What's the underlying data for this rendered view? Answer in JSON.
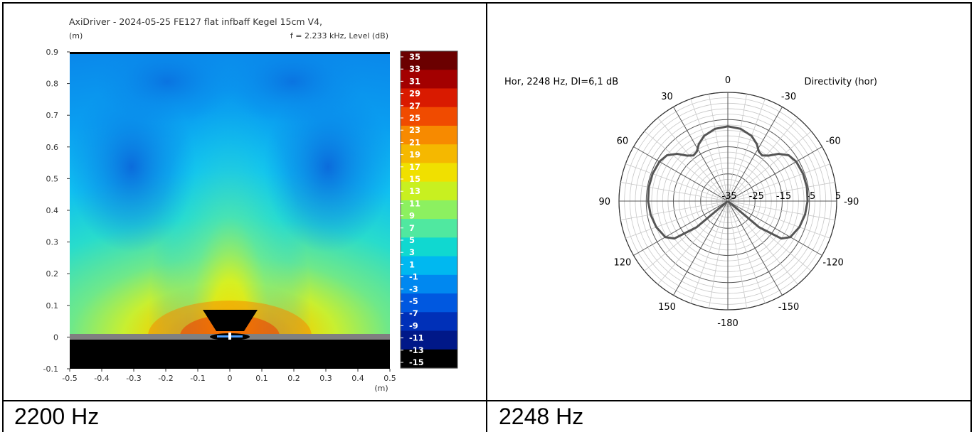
{
  "captions": {
    "left": "2200 Hz",
    "right": "2248 Hz"
  },
  "chart_data": [
    {
      "type": "heatmap",
      "title": "AxiDriver - 2024-05-25 FE127 flat infbaff Kegel 15cm V4,",
      "subtitle": "f = 2.233 kHz, Level  (dB)",
      "ylabel": "(m)",
      "xlabel": "(m)",
      "xlim": [
        -0.5,
        0.5
      ],
      "ylim": [
        -0.1,
        0.9
      ],
      "xticks": [
        "-0.5",
        "-0.4",
        "-0.3",
        "-0.2",
        "-0.1",
        "0",
        "0.1",
        "0.2",
        "0.3",
        "0.4",
        "0.5"
      ],
      "yticks": [
        "-0.1",
        "0",
        "0.1",
        "0.2",
        "0.3",
        "0.4",
        "0.5",
        "0.6",
        "0.7",
        "0.8",
        "0.9"
      ],
      "colorbar": {
        "labels": [
          "35",
          "33",
          "31",
          "29",
          "27",
          "25",
          "23",
          "21",
          "19",
          "17",
          "15",
          "13",
          "11",
          "9",
          "7",
          "5",
          "3",
          "1",
          "-1",
          "-3",
          "-5",
          "-7",
          "-9",
          "-11",
          "-13",
          "-15"
        ],
        "min": -15,
        "max": 35,
        "colors": [
          "#6b0000",
          "#a30000",
          "#d91a00",
          "#f04b00",
          "#f78a00",
          "#f5b800",
          "#f0e000",
          "#c8f020",
          "#8cf060",
          "#50e8a0",
          "#10d8d0",
          "#00b8f0",
          "#0088f0",
          "#0058e0",
          "#0030b8",
          "#001888",
          "#000000"
        ]
      },
      "baffle_y": 0,
      "legend": "right"
    },
    {
      "type": "polar",
      "title": "Hor, 2248 Hz, DI=6,1 dB",
      "legend_label": "Directivity (hor)",
      "angle_labels": [
        "0",
        "-30",
        "-60",
        "-90",
        "-120",
        "-150",
        "-180",
        "150",
        "120",
        "90",
        "60",
        "30"
      ],
      "radial_labels": [
        "-35",
        "-25",
        "-15",
        "-5",
        "5"
      ],
      "radial_range": [
        -35,
        5
      ],
      "series": [
        {
          "angles_deg": [
            0,
            10,
            20,
            27,
            32,
            37,
            42,
            47,
            53,
            60,
            70,
            80,
            90,
            100,
            110,
            120,
            125,
            130,
            140,
            150,
            160,
            170,
            180
          ],
          "levels_db": [
            -7.5,
            -8.0,
            -9.5,
            -11.5,
            -13.5,
            -14.0,
            -12.5,
            -9.5,
            -7.0,
            -6.0,
            -5.6,
            -5.5,
            -5.7,
            -6.2,
            -7.0,
            -8.5,
            -11.0,
            -20.0,
            -35.0,
            -35.0,
            -35.0,
            -35.0,
            -35.0
          ],
          "symmetric": true
        }
      ]
    }
  ]
}
